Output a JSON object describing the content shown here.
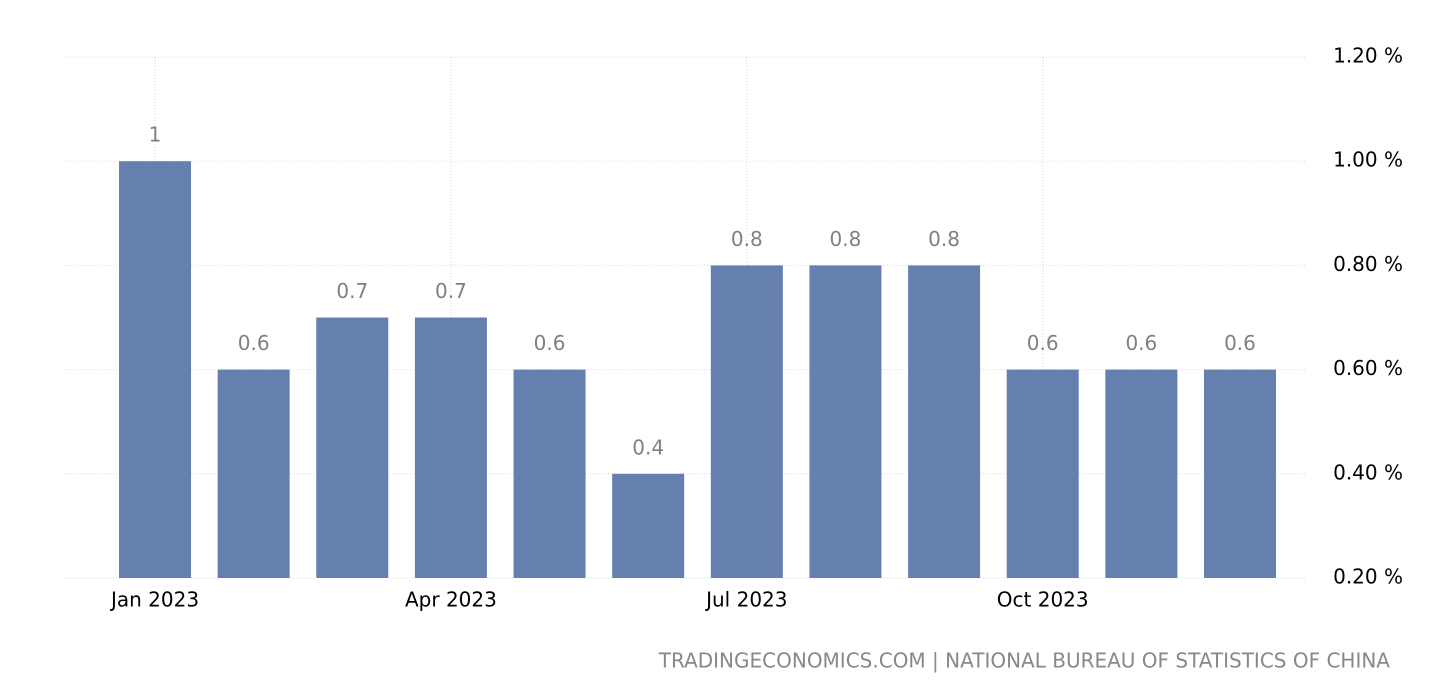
{
  "chart_data": {
    "type": "bar",
    "categories": [
      "Jan 2023",
      null,
      null,
      "Apr 2023",
      null,
      null,
      "Jul 2023",
      null,
      null,
      "Oct 2023",
      null,
      null
    ],
    "values": [
      1,
      0.6,
      0.7,
      0.7,
      0.6,
      0.4,
      0.8,
      0.8,
      0.8,
      0.6,
      0.6,
      0.6
    ],
    "color": "#6580ae",
    "ylim": [
      0.2,
      1.2
    ],
    "yticks": [
      {
        "value": 0.2,
        "label": "0.20 %"
      },
      {
        "value": 0.4,
        "label": "0.40 %"
      },
      {
        "value": 0.6,
        "label": "0.60 %"
      },
      {
        "value": 0.8,
        "label": "0.80 %"
      },
      {
        "value": 1.0,
        "label": "1.00 %"
      },
      {
        "value": 1.2,
        "label": "1.20 %"
      }
    ],
    "grid": true,
    "source": "TRADINGECONOMICS.COM | NATIONAL BUREAU OF STATISTICS OF CHINA"
  }
}
